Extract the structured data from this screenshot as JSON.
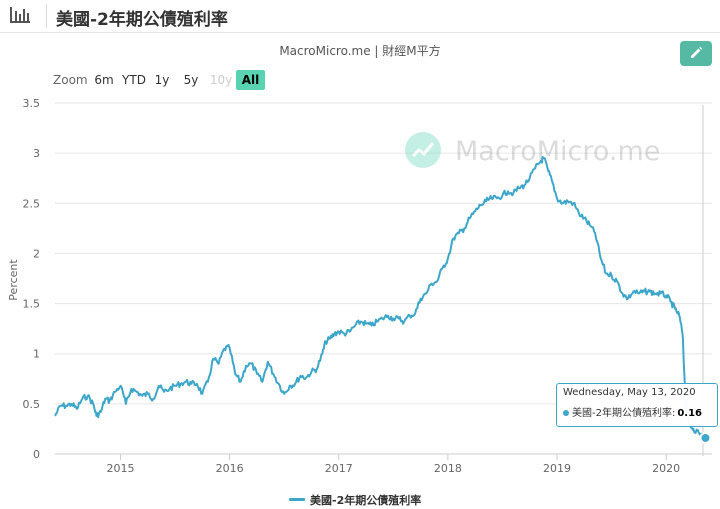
{
  "header": {
    "title": "美國-2年期公債殖利率"
  },
  "source": "MacroMicro.me | 財經M平方",
  "watermark": "MacroMicro.me",
  "zoom": {
    "label": "Zoom",
    "buttons": [
      "6m",
      "YTD",
      "1y",
      "5y",
      "10y",
      "All"
    ],
    "disabled": "10y",
    "active": "All"
  },
  "tooltip": {
    "date": "Wednesday, May 13, 2020",
    "series": "美國-2年期公債殖利率:",
    "value": "0.16"
  },
  "colors": {
    "line": "#3ea7c9",
    "accent": "#5ad3b3",
    "edit": "#55b9a3"
  },
  "chart_data": {
    "type": "line",
    "title": "美國-2年期公債殖利率",
    "ylabel": "Percent",
    "xlabel": "",
    "ylim": [
      0,
      3.5
    ],
    "yticks": [
      "0",
      "0.5",
      "1",
      "1.5",
      "2",
      "2.5",
      "3",
      "3.5"
    ],
    "xticks": [
      "2015",
      "2016",
      "2017",
      "2018",
      "2019",
      "2020"
    ],
    "xlim": [
      2014.4,
      2020.42
    ],
    "grid": true,
    "legend": "bottom",
    "series": [
      {
        "name": "美國-2年期公債殖利率",
        "x": [
          2014.4,
          2014.45,
          2014.5,
          2014.55,
          2014.6,
          2014.65,
          2014.7,
          2014.75,
          2014.78,
          2014.82,
          2014.86,
          2014.9,
          2014.95,
          2015.0,
          2015.05,
          2015.1,
          2015.15,
          2015.2,
          2015.25,
          2015.3,
          2015.35,
          2015.4,
          2015.45,
          2015.5,
          2015.55,
          2015.6,
          2015.65,
          2015.7,
          2015.75,
          2015.8,
          2015.85,
          2015.9,
          2015.95,
          2016.0,
          2016.05,
          2016.1,
          2016.15,
          2016.2,
          2016.25,
          2016.3,
          2016.35,
          2016.4,
          2016.45,
          2016.5,
          2016.55,
          2016.6,
          2016.65,
          2016.7,
          2016.75,
          2016.8,
          2016.85,
          2016.88,
          2016.92,
          2016.96,
          2017.0,
          2017.05,
          2017.1,
          2017.15,
          2017.2,
          2017.25,
          2017.3,
          2017.35,
          2017.4,
          2017.45,
          2017.5,
          2017.55,
          2017.6,
          2017.65,
          2017.7,
          2017.75,
          2017.8,
          2017.85,
          2017.9,
          2017.95,
          2018.0,
          2018.05,
          2018.1,
          2018.15,
          2018.2,
          2018.25,
          2018.3,
          2018.35,
          2018.4,
          2018.45,
          2018.5,
          2018.55,
          2018.6,
          2018.65,
          2018.7,
          2018.75,
          2018.8,
          2018.85,
          2018.88,
          2018.92,
          2018.96,
          2019.0,
          2019.05,
          2019.1,
          2019.15,
          2019.2,
          2019.25,
          2019.3,
          2019.35,
          2019.4,
          2019.45,
          2019.5,
          2019.55,
          2019.6,
          2019.65,
          2019.7,
          2019.75,
          2019.8,
          2019.85,
          2019.9,
          2019.95,
          2020.0,
          2020.04,
          2020.08,
          2020.12,
          2020.15,
          2020.17,
          2020.19,
          2020.21,
          2020.25,
          2020.3,
          2020.36
        ],
        "y": [
          0.38,
          0.48,
          0.48,
          0.5,
          0.45,
          0.55,
          0.58,
          0.5,
          0.38,
          0.42,
          0.55,
          0.53,
          0.62,
          0.68,
          0.5,
          0.65,
          0.62,
          0.58,
          0.6,
          0.55,
          0.68,
          0.62,
          0.65,
          0.68,
          0.7,
          0.72,
          0.7,
          0.7,
          0.6,
          0.72,
          0.95,
          0.9,
          1.05,
          1.06,
          0.8,
          0.72,
          0.88,
          0.9,
          0.8,
          0.72,
          0.92,
          0.8,
          0.7,
          0.6,
          0.68,
          0.7,
          0.78,
          0.76,
          0.82,
          0.85,
          1.0,
          1.12,
          1.15,
          1.2,
          1.22,
          1.2,
          1.22,
          1.28,
          1.32,
          1.3,
          1.28,
          1.32,
          1.35,
          1.38,
          1.35,
          1.35,
          1.32,
          1.38,
          1.4,
          1.55,
          1.6,
          1.7,
          1.72,
          1.85,
          1.95,
          2.15,
          2.2,
          2.25,
          2.35,
          2.42,
          2.48,
          2.52,
          2.55,
          2.55,
          2.58,
          2.62,
          2.6,
          2.65,
          2.68,
          2.75,
          2.85,
          2.92,
          2.95,
          2.82,
          2.7,
          2.55,
          2.5,
          2.52,
          2.5,
          2.4,
          2.35,
          2.28,
          2.2,
          1.95,
          1.8,
          1.78,
          1.72,
          1.6,
          1.55,
          1.62,
          1.6,
          1.62,
          1.62,
          1.6,
          1.6,
          1.58,
          1.52,
          1.45,
          1.38,
          1.2,
          0.72,
          0.38,
          0.3,
          0.25,
          0.21,
          0.16
        ]
      }
    ]
  }
}
